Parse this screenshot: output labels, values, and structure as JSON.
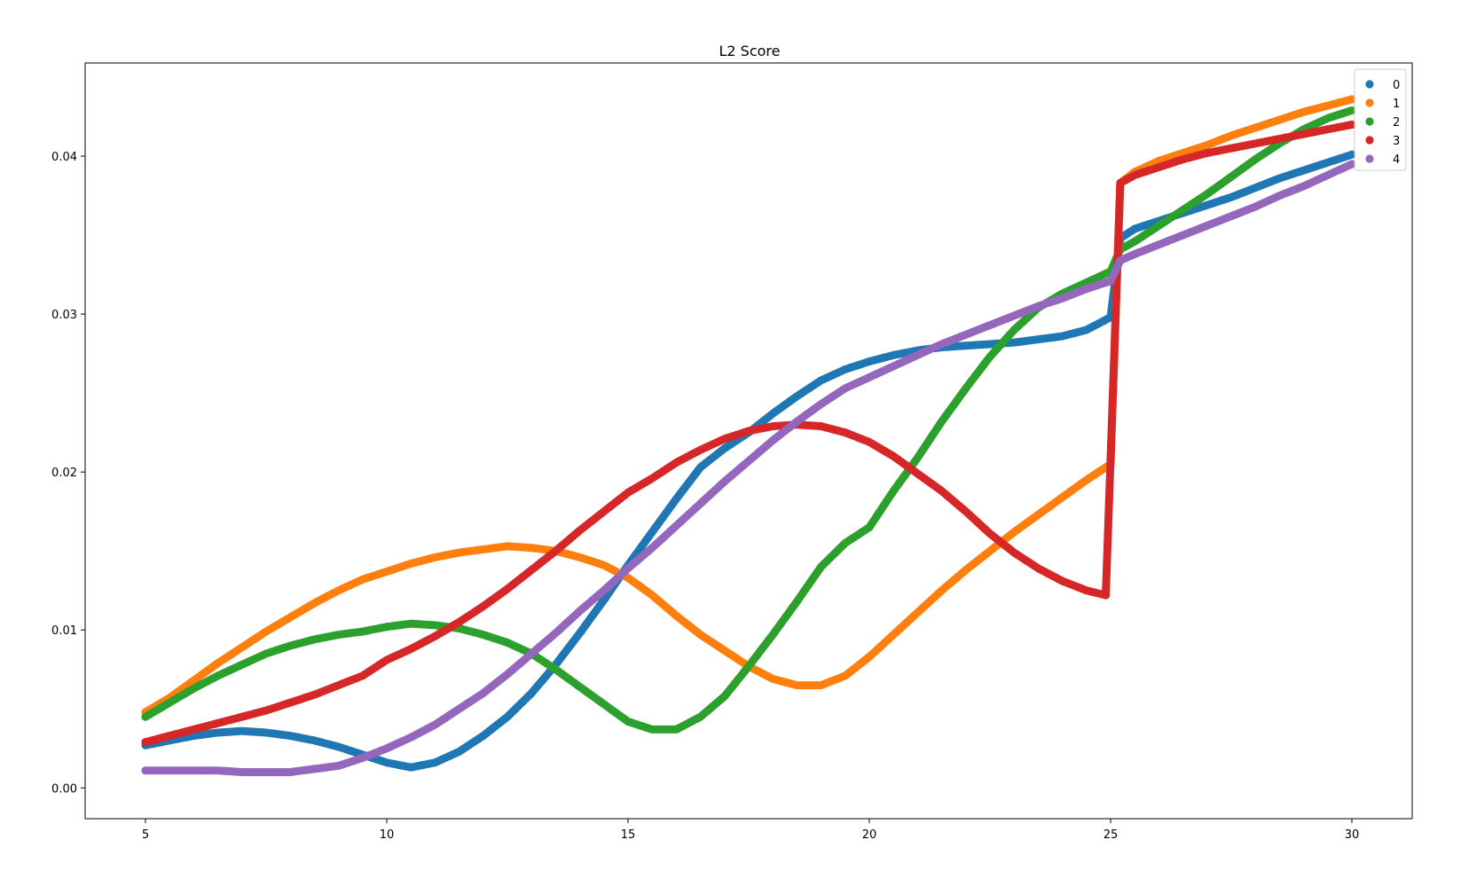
{
  "chart_data": {
    "type": "scatter",
    "title": "L2 Score",
    "xlabel": "",
    "ylabel": "",
    "xlim": [
      3.75,
      31.25
    ],
    "ylim": [
      -0.00195,
      0.0459
    ],
    "xticks": [
      5,
      10,
      15,
      20,
      25,
      30
    ],
    "xtick_labels": [
      "5",
      "10",
      "15",
      "20",
      "25",
      "30"
    ],
    "yticks": [
      0.0,
      0.01,
      0.02,
      0.03,
      0.04
    ],
    "ytick_labels": [
      "0.00",
      "0.01",
      "0.02",
      "0.03",
      "0.04"
    ],
    "grid": false,
    "legend_position": "top-right",
    "series": [
      {
        "name": "0",
        "color": "#1f77b4",
        "points": [
          [
            5.0,
            0.0027
          ],
          [
            5.5,
            0.003
          ],
          [
            6.0,
            0.0033
          ],
          [
            6.5,
            0.0035
          ],
          [
            7.0,
            0.0036
          ],
          [
            7.5,
            0.0035
          ],
          [
            8.0,
            0.0033
          ],
          [
            8.5,
            0.003
          ],
          [
            9.0,
            0.0026
          ],
          [
            9.5,
            0.0021
          ],
          [
            10.0,
            0.0016
          ],
          [
            10.5,
            0.0013
          ],
          [
            11.0,
            0.0016
          ],
          [
            11.5,
            0.0023
          ],
          [
            12.0,
            0.0033
          ],
          [
            12.5,
            0.0045
          ],
          [
            13.0,
            0.006
          ],
          [
            13.5,
            0.0078
          ],
          [
            14.0,
            0.0098
          ],
          [
            14.5,
            0.0119
          ],
          [
            15.0,
            0.0141
          ],
          [
            15.5,
            0.0162
          ],
          [
            16.0,
            0.0183
          ],
          [
            16.5,
            0.0203
          ],
          [
            17.0,
            0.0215
          ],
          [
            17.5,
            0.0225
          ],
          [
            18.0,
            0.0237
          ],
          [
            18.5,
            0.0248
          ],
          [
            19.0,
            0.0258
          ],
          [
            19.5,
            0.0265
          ],
          [
            20.0,
            0.027
          ],
          [
            20.5,
            0.0274
          ],
          [
            21.0,
            0.0277
          ],
          [
            21.5,
            0.0279
          ],
          [
            22.0,
            0.028
          ],
          [
            22.5,
            0.0281
          ],
          [
            23.0,
            0.0282
          ],
          [
            23.5,
            0.0284
          ],
          [
            24.0,
            0.0286
          ],
          [
            24.5,
            0.029
          ],
          [
            25.0,
            0.0298
          ],
          [
            25.2,
            0.0348
          ],
          [
            25.5,
            0.0354
          ],
          [
            26.0,
            0.0359
          ],
          [
            26.5,
            0.0364
          ],
          [
            27.0,
            0.0369
          ],
          [
            27.5,
            0.0374
          ],
          [
            28.0,
            0.038
          ],
          [
            28.5,
            0.0386
          ],
          [
            29.0,
            0.0391
          ],
          [
            29.5,
            0.0396
          ],
          [
            30.0,
            0.0401
          ]
        ]
      },
      {
        "name": "1",
        "color": "#ff7f0e",
        "points": [
          [
            5.0,
            0.0048
          ],
          [
            5.5,
            0.0057
          ],
          [
            6.0,
            0.0068
          ],
          [
            6.5,
            0.0079
          ],
          [
            7.0,
            0.0089
          ],
          [
            7.5,
            0.0099
          ],
          [
            8.0,
            0.0108
          ],
          [
            8.5,
            0.0117
          ],
          [
            9.0,
            0.0125
          ],
          [
            9.5,
            0.0132
          ],
          [
            10.0,
            0.0137
          ],
          [
            10.5,
            0.0142
          ],
          [
            11.0,
            0.0146
          ],
          [
            11.5,
            0.0149
          ],
          [
            12.0,
            0.0151
          ],
          [
            12.5,
            0.0153
          ],
          [
            13.0,
            0.0152
          ],
          [
            13.5,
            0.015
          ],
          [
            14.0,
            0.0146
          ],
          [
            14.5,
            0.0141
          ],
          [
            15.0,
            0.0133
          ],
          [
            15.5,
            0.0122
          ],
          [
            16.0,
            0.0109
          ],
          [
            16.5,
            0.0097
          ],
          [
            17.0,
            0.0087
          ],
          [
            17.5,
            0.0077
          ],
          [
            18.0,
            0.0069
          ],
          [
            18.5,
            0.0065
          ],
          [
            19.0,
            0.0065
          ],
          [
            19.5,
            0.0071
          ],
          [
            20.0,
            0.0083
          ],
          [
            20.5,
            0.0097
          ],
          [
            21.0,
            0.0111
          ],
          [
            21.5,
            0.0125
          ],
          [
            22.0,
            0.0138
          ],
          [
            22.5,
            0.015
          ],
          [
            23.0,
            0.0162
          ],
          [
            23.5,
            0.0173
          ],
          [
            24.0,
            0.0184
          ],
          [
            24.5,
            0.0195
          ],
          [
            25.0,
            0.0205
          ],
          [
            25.2,
            0.0383
          ],
          [
            25.5,
            0.039
          ],
          [
            26.0,
            0.0397
          ],
          [
            26.5,
            0.0402
          ],
          [
            27.0,
            0.0407
          ],
          [
            27.5,
            0.0413
          ],
          [
            28.0,
            0.0418
          ],
          [
            28.5,
            0.0423
          ],
          [
            29.0,
            0.0428
          ],
          [
            29.5,
            0.0432
          ],
          [
            30.0,
            0.0436
          ]
        ]
      },
      {
        "name": "2",
        "color": "#2ca02c",
        "points": [
          [
            5.0,
            0.0045
          ],
          [
            5.5,
            0.0054
          ],
          [
            6.0,
            0.0063
          ],
          [
            6.5,
            0.0071
          ],
          [
            7.0,
            0.0078
          ],
          [
            7.5,
            0.0085
          ],
          [
            8.0,
            0.009
          ],
          [
            8.5,
            0.0094
          ],
          [
            9.0,
            0.0097
          ],
          [
            9.5,
            0.0099
          ],
          [
            10.0,
            0.0102
          ],
          [
            10.5,
            0.0104
          ],
          [
            11.0,
            0.0103
          ],
          [
            11.5,
            0.0101
          ],
          [
            12.0,
            0.0097
          ],
          [
            12.5,
            0.0092
          ],
          [
            13.0,
            0.0085
          ],
          [
            13.5,
            0.0075
          ],
          [
            14.0,
            0.0064
          ],
          [
            14.5,
            0.0053
          ],
          [
            15.0,
            0.0042
          ],
          [
            15.5,
            0.0037
          ],
          [
            16.0,
            0.0037
          ],
          [
            16.5,
            0.0045
          ],
          [
            17.0,
            0.0058
          ],
          [
            17.5,
            0.0077
          ],
          [
            18.0,
            0.0097
          ],
          [
            18.5,
            0.0118
          ],
          [
            19.0,
            0.014
          ],
          [
            19.5,
            0.0155
          ],
          [
            20.0,
            0.0165
          ],
          [
            20.5,
            0.0188
          ],
          [
            21.0,
            0.0209
          ],
          [
            21.5,
            0.0232
          ],
          [
            22.0,
            0.0253
          ],
          [
            22.5,
            0.0273
          ],
          [
            23.0,
            0.029
          ],
          [
            23.5,
            0.0304
          ],
          [
            24.0,
            0.0313
          ],
          [
            24.5,
            0.032
          ],
          [
            25.0,
            0.0327
          ],
          [
            25.2,
            0.0341
          ],
          [
            25.5,
            0.0346
          ],
          [
            26.0,
            0.0356
          ],
          [
            26.5,
            0.0366
          ],
          [
            27.0,
            0.0376
          ],
          [
            27.5,
            0.0387
          ],
          [
            28.0,
            0.0398
          ],
          [
            28.5,
            0.0408
          ],
          [
            29.0,
            0.0417
          ],
          [
            29.5,
            0.0424
          ],
          [
            30.0,
            0.0429
          ]
        ]
      },
      {
        "name": "3",
        "color": "#d62728",
        "points": [
          [
            5.0,
            0.0029
          ],
          [
            5.5,
            0.0033
          ],
          [
            6.0,
            0.0037
          ],
          [
            6.5,
            0.0041
          ],
          [
            7.0,
            0.0045
          ],
          [
            7.5,
            0.0049
          ],
          [
            8.0,
            0.0054
          ],
          [
            8.5,
            0.0059
          ],
          [
            9.0,
            0.0065
          ],
          [
            9.5,
            0.0071
          ],
          [
            10.0,
            0.0081
          ],
          [
            10.5,
            0.0088
          ],
          [
            11.0,
            0.0096
          ],
          [
            11.5,
            0.0105
          ],
          [
            12.0,
            0.0115
          ],
          [
            12.5,
            0.0126
          ],
          [
            13.0,
            0.0138
          ],
          [
            13.5,
            0.015
          ],
          [
            14.0,
            0.0163
          ],
          [
            14.5,
            0.0175
          ],
          [
            15.0,
            0.0187
          ],
          [
            15.5,
            0.0196
          ],
          [
            16.0,
            0.0206
          ],
          [
            16.5,
            0.0214
          ],
          [
            17.0,
            0.0221
          ],
          [
            17.5,
            0.0226
          ],
          [
            18.0,
            0.0229
          ],
          [
            18.5,
            0.023
          ],
          [
            19.0,
            0.0229
          ],
          [
            19.5,
            0.0225
          ],
          [
            20.0,
            0.0219
          ],
          [
            20.5,
            0.021
          ],
          [
            21.0,
            0.0199
          ],
          [
            21.5,
            0.0188
          ],
          [
            22.0,
            0.0175
          ],
          [
            22.5,
            0.0161
          ],
          [
            23.0,
            0.0149
          ],
          [
            23.5,
            0.0139
          ],
          [
            24.0,
            0.0131
          ],
          [
            24.5,
            0.0125
          ],
          [
            24.9,
            0.0122
          ],
          [
            25.2,
            0.0383
          ],
          [
            25.5,
            0.0388
          ],
          [
            26.0,
            0.0393
          ],
          [
            26.5,
            0.0398
          ],
          [
            27.0,
            0.0402
          ],
          [
            27.5,
            0.0405
          ],
          [
            28.0,
            0.0408
          ],
          [
            28.5,
            0.0411
          ],
          [
            29.0,
            0.0414
          ],
          [
            29.5,
            0.0417
          ],
          [
            30.0,
            0.042
          ]
        ]
      },
      {
        "name": "4",
        "color": "#9467bd",
        "points": [
          [
            5.0,
            0.0011
          ],
          [
            5.5,
            0.0011
          ],
          [
            6.0,
            0.0011
          ],
          [
            6.5,
            0.0011
          ],
          [
            7.0,
            0.001
          ],
          [
            7.5,
            0.001
          ],
          [
            8.0,
            0.001
          ],
          [
            8.5,
            0.0012
          ],
          [
            9.0,
            0.0014
          ],
          [
            9.5,
            0.0019
          ],
          [
            10.0,
            0.0025
          ],
          [
            10.5,
            0.0032
          ],
          [
            11.0,
            0.004
          ],
          [
            11.5,
            0.005
          ],
          [
            12.0,
            0.006
          ],
          [
            12.5,
            0.0072
          ],
          [
            13.0,
            0.0085
          ],
          [
            13.5,
            0.0098
          ],
          [
            14.0,
            0.0112
          ],
          [
            14.5,
            0.0125
          ],
          [
            15.0,
            0.0139
          ],
          [
            15.5,
            0.0152
          ],
          [
            16.0,
            0.0166
          ],
          [
            16.5,
            0.018
          ],
          [
            17.0,
            0.0194
          ],
          [
            17.5,
            0.0207
          ],
          [
            18.0,
            0.022
          ],
          [
            18.5,
            0.0232
          ],
          [
            19.0,
            0.0243
          ],
          [
            19.5,
            0.0253
          ],
          [
            20.0,
            0.026
          ],
          [
            20.5,
            0.0267
          ],
          [
            21.0,
            0.0274
          ],
          [
            21.5,
            0.0281
          ],
          [
            22.0,
            0.0287
          ],
          [
            22.5,
            0.0293
          ],
          [
            23.0,
            0.0299
          ],
          [
            23.5,
            0.0305
          ],
          [
            24.0,
            0.031
          ],
          [
            24.5,
            0.0316
          ],
          [
            25.0,
            0.0321
          ],
          [
            25.2,
            0.0334
          ],
          [
            25.5,
            0.0338
          ],
          [
            26.0,
            0.0344
          ],
          [
            26.5,
            0.035
          ],
          [
            27.0,
            0.0356
          ],
          [
            27.5,
            0.0362
          ],
          [
            28.0,
            0.0368
          ],
          [
            28.5,
            0.0375
          ],
          [
            29.0,
            0.0381
          ],
          [
            29.5,
            0.0388
          ],
          [
            30.0,
            0.0395
          ]
        ]
      }
    ]
  }
}
